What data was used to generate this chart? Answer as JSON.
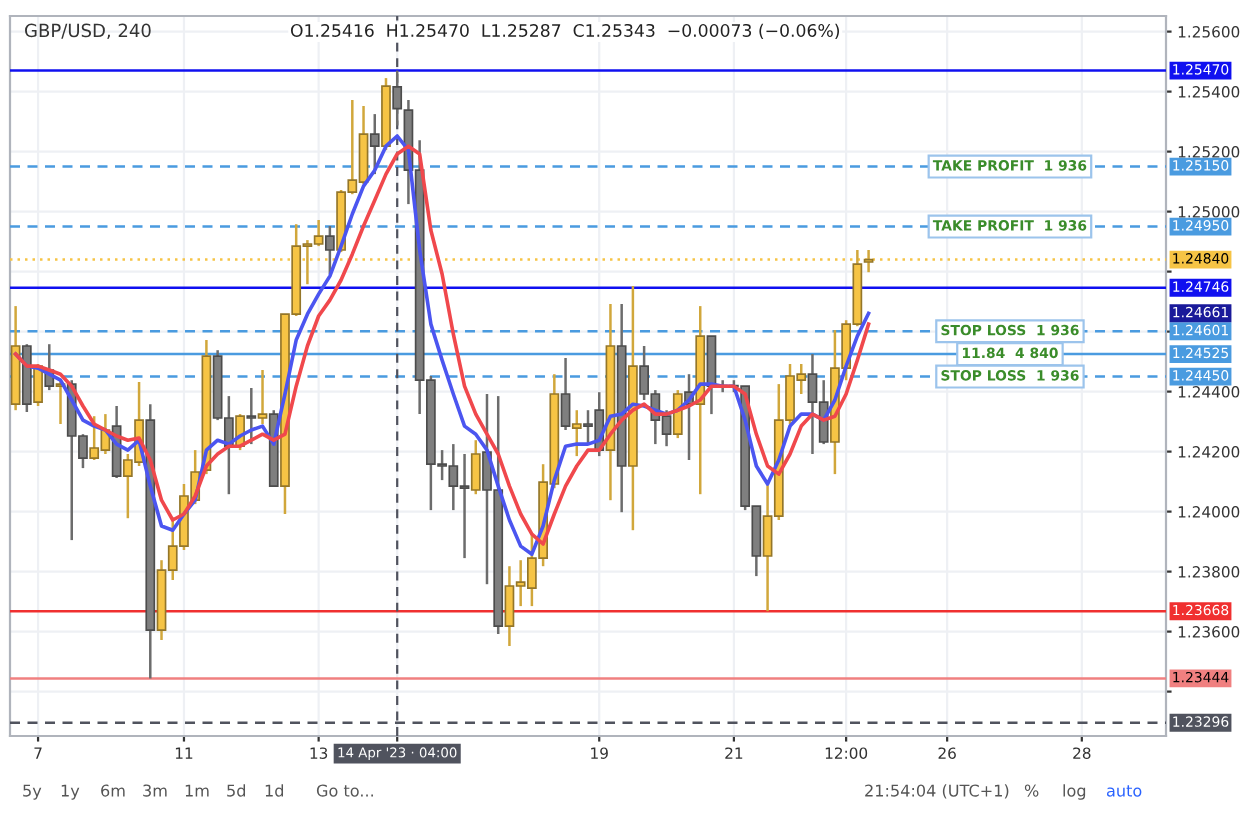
{
  "chart_data": {
    "type": "candlestick",
    "title": "GBP/USD, 240",
    "subtitle": "O1.25416  H1.25470  L1.25287  C1.25343  −0.00073 (−0.06%)",
    "categories": [
      null,
      null,
      "7",
      null,
      null,
      null,
      null,
      null,
      null,
      null,
      null,
      null,
      null,
      null,
      null,
      "11",
      null,
      null,
      null,
      null,
      null,
      null,
      null,
      null,
      null,
      null,
      null,
      "13",
      null,
      null,
      null,
      null,
      null,
      null,
      "14 Apr '23 · 04:00",
      null,
      null,
      null,
      null,
      null,
      null,
      null,
      null,
      null,
      null,
      null,
      null,
      null,
      null,
      null,
      null,
      null,
      "19",
      null,
      null,
      null,
      null,
      null,
      null,
      null,
      null,
      null,
      null,
      null,
      "21",
      null,
      null,
      null,
      null,
      null,
      null,
      null,
      null,
      null,
      "12:00",
      null,
      null,
      null,
      null,
      null,
      null,
      null,
      null,
      "26",
      null,
      null,
      null,
      null,
      null,
      null,
      null,
      null,
      null,
      null,
      null,
      "28",
      null,
      null,
      null,
      null,
      null,
      null,
      null
    ],
    "ohlc": [
      [
        1.24358,
        1.24685,
        1.24338,
        1.24552
      ],
      [
        1.24552,
        1.24558,
        1.24332,
        1.24358
      ],
      [
        1.24365,
        1.24492,
        1.24352,
        1.24485
      ],
      [
        1.24472,
        1.24558,
        1.24405,
        1.24418
      ],
      [
        1.24418,
        1.24438,
        1.24292,
        1.24425
      ],
      [
        1.24425,
        1.24438,
        1.23905,
        1.24252
      ],
      [
        1.24252,
        1.24258,
        1.24145,
        1.24178
      ],
      [
        1.24178,
        1.24318,
        1.24172,
        1.24212
      ],
      [
        1.24205,
        1.24325,
        1.24192,
        1.24272
      ],
      [
        1.24285,
        1.24352,
        1.24112,
        1.24118
      ],
      [
        1.24118,
        1.24192,
        1.23978,
        1.24172
      ],
      [
        1.24165,
        1.24432,
        1.24152,
        1.24305
      ],
      [
        1.24305,
        1.24358,
        1.23444,
        1.23605
      ],
      [
        1.23605,
        1.23838,
        1.23572,
        1.23805
      ],
      [
        1.23805,
        1.23972,
        1.23772,
        1.23885
      ],
      [
        1.23885,
        1.24092,
        1.23872,
        1.24052
      ],
      [
        1.24038,
        1.24205,
        1.24025,
        1.24132
      ],
      [
        1.24138,
        1.24572,
        1.24125,
        1.24518
      ],
      [
        1.24518,
        1.24538,
        1.24305,
        1.24312
      ],
      [
        1.24312,
        1.24385,
        1.24058,
        1.24218
      ],
      [
        1.24218,
        1.24325,
        1.24205,
        1.24318
      ],
      [
        1.24318,
        1.24412,
        1.24225,
        1.24312
      ],
      [
        1.24312,
        1.24472,
        1.24292,
        1.24325
      ],
      [
        1.24325,
        1.24338,
        1.24085,
        1.24085
      ],
      [
        1.24085,
        1.24658,
        1.23992,
        1.24658
      ],
      [
        1.24658,
        1.24958,
        1.24652,
        1.24885
      ],
      [
        1.24885,
        1.24905,
        1.24758,
        1.24892
      ],
      [
        1.24892,
        1.24972,
        1.24885,
        1.24918
      ],
      [
        1.24918,
        1.24952,
        1.24792,
        1.24872
      ],
      [
        1.24872,
        1.25072,
        1.24865,
        1.25065
      ],
      [
        1.25065,
        1.25372,
        1.25058,
        1.25105
      ],
      [
        1.25098,
        1.25352,
        1.25092,
        1.25258
      ],
      [
        1.25258,
        1.25325,
        1.25125,
        1.25218
      ],
      [
        1.25218,
        1.25445,
        1.25205,
        1.25418
      ],
      [
        1.25416,
        1.2547,
        1.25287,
        1.25343
      ],
      [
        1.25338,
        1.25372,
        1.25025,
        1.25138
      ],
      [
        1.25138,
        1.25238,
        1.24325,
        1.24438
      ],
      [
        1.24438,
        1.24452,
        1.24005,
        1.24158
      ],
      [
        1.24158,
        1.24205,
        1.24105,
        1.24152
      ],
      [
        1.24152,
        1.24225,
        1.24005,
        1.24085
      ],
      [
        1.24085,
        1.24192,
        1.23845,
        1.24078
      ],
      [
        1.24072,
        1.24238,
        1.24058,
        1.24192
      ],
      [
        1.24198,
        1.24392,
        1.23758,
        1.24072
      ],
      [
        1.24072,
        1.24385,
        1.23592,
        1.23618
      ],
      [
        1.23618,
        1.23818,
        1.23552,
        1.23752
      ],
      [
        1.23752,
        1.23838,
        1.23685,
        1.23765
      ],
      [
        1.23745,
        1.23925,
        1.23685,
        1.23845
      ],
      [
        1.23845,
        1.24158,
        1.23818,
        1.24098
      ],
      [
        1.24092,
        1.24458,
        1.24078,
        1.24392
      ],
      [
        1.24392,
        1.24512,
        1.24272,
        1.24285
      ],
      [
        1.24278,
        1.24338,
        1.24185,
        1.24292
      ],
      [
        1.24292,
        1.24338,
        1.24225,
        1.24285
      ],
      [
        1.24338,
        1.24398,
        1.24185,
        1.24205
      ],
      [
        1.24205,
        1.24692,
        1.24038,
        1.24552
      ],
      [
        1.24552,
        1.24692,
        1.23998,
        1.24152
      ],
      [
        1.24152,
        1.24752,
        1.23938,
        1.24485
      ],
      [
        1.24485,
        1.24552,
        1.24372,
        1.24392
      ],
      [
        1.24392,
        1.24405,
        1.24225,
        1.24305
      ],
      [
        1.24318,
        1.24338,
        1.24218,
        1.24258
      ],
      [
        1.24258,
        1.24405,
        1.24245,
        1.24392
      ],
      [
        1.24398,
        1.24458,
        1.24172,
        1.24358
      ],
      [
        1.24358,
        1.24685,
        1.24058,
        1.24585
      ],
      [
        1.24585,
        1.24585,
        1.24325,
        1.24418
      ],
      [
        1.24418,
        1.24438,
        1.24398,
        1.24418
      ],
      [
        1.24418,
        1.24438,
        1.24398,
        1.24418
      ],
      [
        1.24418,
        1.24418,
        1.24005,
        1.24018
      ],
      [
        1.24018,
        1.24018,
        1.23785,
        1.23852
      ],
      [
        1.23852,
        1.24105,
        1.23668,
        1.23985
      ],
      [
        1.23985,
        1.24425,
        1.23972,
        1.24305
      ],
      [
        1.24305,
        1.24492,
        1.24292,
        1.24452
      ],
      [
        1.24438,
        1.24492,
        1.24392,
        1.24458
      ],
      [
        1.24458,
        1.24525,
        1.24192,
        1.24365
      ],
      [
        1.24365,
        1.24438,
        1.24225,
        1.24232
      ],
      [
        1.24232,
        1.24605,
        1.24125,
        1.24478
      ],
      [
        1.24478,
        1.24638,
        1.24438,
        1.24625
      ],
      [
        1.24625,
        1.24872,
        1.24618,
        1.24825
      ],
      [
        1.24832,
        1.24872,
        1.24798,
        1.2484
      ],
      null,
      null,
      null,
      null,
      null,
      null,
      null,
      null,
      null,
      null,
      null,
      null,
      null,
      null,
      null,
      null,
      null,
      null,
      null,
      null,
      null,
      null,
      null,
      null,
      null,
      null
    ],
    "colors": [
      "#f6c445",
      "#7f7f7f",
      "#f6c445",
      "#7f7f7f",
      "#f6c445",
      "#7f7f7f",
      "#7f7f7f",
      "#f6c445",
      "#f6c445",
      "#7f7f7f",
      "#f6c445",
      "#f6c445",
      "#7f7f7f",
      "#f6c445",
      "#f6c445",
      "#f6c445",
      "#f6c445",
      "#f6c445",
      "#7f7f7f",
      "#7f7f7f",
      "#f6c445",
      "#7f7f7f",
      "#f6c445",
      "#7f7f7f",
      "#f6c445",
      "#f6c445",
      "#f6c445",
      "#f6c445",
      "#7f7f7f",
      "#f6c445",
      "#f6c445",
      "#f6c445",
      "#7f7f7f",
      "#f6c445",
      "#7f7f7f",
      "#7f7f7f",
      "#7f7f7f",
      "#7f7f7f",
      "#7f7f7f",
      "#7f7f7f",
      "#7f7f7f",
      "#f6c445",
      "#7f7f7f",
      "#7f7f7f",
      "#f6c445",
      "#f6c445",
      "#f6c445",
      "#f6c445",
      "#f6c445",
      "#7f7f7f",
      "#f6c445",
      "#7f7f7f",
      "#7f7f7f",
      "#f6c445",
      "#7f7f7f",
      "#f6c445",
      "#7f7f7f",
      "#7f7f7f",
      "#7f7f7f",
      "#f6c445",
      "#7f7f7f",
      "#f6c445",
      "#7f7f7f",
      "#7f7f7f",
      "#7f7f7f",
      "#7f7f7f",
      "#7f7f7f",
      "#f6c445",
      "#f6c445",
      "#f6c445",
      "#f6c445",
      "#7f7f7f",
      "#7f7f7f",
      "#f6c445",
      "#f6c445",
      "#f6c445",
      "#f6c445",
      null,
      null,
      null,
      null,
      null,
      null,
      null,
      null,
      null,
      null,
      null,
      null,
      null,
      null,
      null,
      null,
      null,
      null,
      null,
      null,
      null,
      null,
      null,
      null,
      null,
      null
    ],
    "series": [
      {
        "type": "line",
        "color": "#4b55f0",
        "values": [
          1.24525,
          1.24485,
          1.24478,
          1.24458,
          1.24438,
          1.24372,
          1.24305,
          1.24285,
          1.24272,
          1.24225,
          1.24205,
          1.24238,
          1.24085,
          1.23952,
          1.23938,
          1.23992,
          1.24038,
          1.24205,
          1.24238,
          1.24225,
          1.24252,
          1.24272,
          1.24285,
          1.24225,
          1.24392,
          1.24572,
          1.24658,
          1.24725,
          1.24785,
          1.24885,
          1.24992,
          1.25085,
          1.25138,
          1.25218,
          1.25252,
          1.25205,
          1.24872,
          1.24625,
          1.24505,
          1.24392,
          1.24285,
          1.24258,
          1.24205,
          1.24085,
          1.23972,
          1.23885,
          1.23858,
          1.23952,
          1.24105,
          1.24218,
          1.24225,
          1.24225,
          1.24238,
          1.24318,
          1.24325,
          1.24358,
          1.24352,
          1.24338,
          1.24325,
          1.24338,
          1.24372,
          1.24425,
          1.24425,
          1.24418,
          1.24418,
          1.24305,
          1.24152,
          1.24092,
          1.24172,
          1.24285,
          1.24325,
          1.24325,
          1.24305,
          1.24372,
          1.24485,
          1.24585,
          1.24661,
          null,
          null,
          null,
          null,
          null,
          null,
          null,
          null,
          null,
          null,
          null,
          null,
          null,
          null,
          null,
          null,
          null,
          null,
          null,
          null,
          null,
          null,
          null,
          null,
          null,
          null
        ],
        "name": null
      },
      {
        "type": "line",
        "color": "#f0484c",
        "values": [
          1.24525,
          1.24485,
          1.24485,
          1.24472,
          1.24458,
          1.24418,
          1.24352,
          1.24292,
          1.24272,
          1.24252,
          1.24238,
          1.24245,
          1.24172,
          1.24038,
          1.23972,
          1.23992,
          1.24052,
          1.24152,
          1.24192,
          1.24218,
          1.24218,
          1.24238,
          1.24258,
          1.24238,
          1.24258,
          1.24418,
          1.24552,
          1.24652,
          1.24705,
          1.24772,
          1.24858,
          1.24952,
          1.25038,
          1.25125,
          1.25192,
          1.25218,
          1.25192,
          1.24938,
          1.24792,
          1.24592,
          1.24418,
          1.24325,
          1.24258,
          1.24192,
          1.24085,
          1.23992,
          1.23925,
          1.23892,
          1.23992,
          1.24085,
          1.24152,
          1.24205,
          1.24205,
          1.24258,
          1.24305,
          1.24338,
          1.24358,
          1.24325,
          1.24325,
          1.24338,
          1.24352,
          1.24372,
          1.24418,
          1.24418,
          1.24418,
          1.24392,
          1.24258,
          1.24152,
          1.24125,
          1.24192,
          1.24285,
          1.24325,
          1.24305,
          1.24318,
          1.24392,
          1.24505,
          1.24625,
          null,
          null,
          null,
          null,
          null,
          null,
          null,
          null,
          null,
          null,
          null,
          null,
          null,
          null,
          null,
          null,
          null,
          null,
          null,
          null,
          null,
          null,
          null,
          null,
          null,
          null
        ]
      }
    ],
    "ylim": [
      1.23252,
      1.25652
    ],
    "yticks": [
      {
        "value": 1.234,
        "label": null
      },
      {
        "value": 1.236,
        "label": "1.23600"
      },
      {
        "value": 1.238,
        "label": "1.23800"
      },
      {
        "value": 1.24,
        "label": "1.24000"
      },
      {
        "value": 1.242,
        "label": "1.24200"
      },
      {
        "value": 1.244,
        "label": "1.24400"
      },
      {
        "value": 1.246,
        "label": null
      },
      {
        "value": 1.248,
        "label": null
      },
      {
        "value": 1.25,
        "label": "1.25000"
      },
      {
        "value": 1.252,
        "label": "1.25200"
      },
      {
        "value": 1.254,
        "label": "1.25400"
      },
      {
        "value": 1.256,
        "label": "1.25600"
      }
    ],
    "grid": true,
    "ref_lines": [
      {
        "axis": "y",
        "value": 1.2547,
        "label": "1.25470",
        "color": "#1010f0",
        "line_style": "solid"
      },
      {
        "axis": "y",
        "value": 1.2515,
        "label": "1.25150",
        "color": "#4a9be0",
        "line_style": "dashed"
      },
      {
        "axis": "y",
        "value": 1.2495,
        "label": "1.24950",
        "color": "#4a9be0",
        "line_style": "dashed"
      },
      {
        "axis": "y",
        "value": 1.2484,
        "label": "1.24840",
        "color": "#f6c445",
        "line_style": "dotted"
      },
      {
        "axis": "y",
        "value": 1.24746,
        "label": "1.24746",
        "color": "#1010f0",
        "line_style": "solid"
      },
      {
        "axis": "y",
        "value": 1.24601,
        "label": "1.24601",
        "color": "#4a9be0",
        "line_style": "dashed"
      },
      {
        "axis": "y",
        "value": 1.24525,
        "label": "1.24525",
        "color": "#4a9be0",
        "line_style": "solid"
      },
      {
        "axis": "y",
        "value": 1.2445,
        "label": "1.24450",
        "color": "#4a9be0",
        "line_style": "dashed"
      },
      {
        "axis": "y",
        "value": 1.23668,
        "label": "1.23668",
        "color": "#f03030",
        "line_style": "solid"
      },
      {
        "axis": "y",
        "value": 1.23444,
        "label": "1.23444",
        "color": "#f08080",
        "line_style": "solid"
      },
      {
        "axis": "y",
        "value": 1.23296,
        "label": "1.23296",
        "color": "#50535e",
        "line_style": "dashed"
      },
      {
        "axis": "x",
        "value": "14 Apr '23 · 04:00",
        "color": "#50535e",
        "line_style": "dashed"
      }
    ],
    "annotations": [
      "1.24661",
      {
        "text": "TAKE PROFIT  1 936",
        "y": 1.2515
      },
      {
        "text": "TAKE PROFIT  1 936",
        "y": 1.2495
      },
      {
        "text": "STOP LOSS  1 936",
        "y": 1.24601
      },
      {
        "text": "11.84  4 840",
        "y": 1.24525
      },
      {
        "text": "STOP LOSS  1 936",
        "y": 1.2445
      },
      "5y",
      "1y",
      "6m",
      "3m",
      "1m",
      "5d",
      "1d",
      "Go to...",
      "21:54:04 (UTC+1)",
      "%",
      "log",
      "auto"
    ],
    "legend": false
  }
}
